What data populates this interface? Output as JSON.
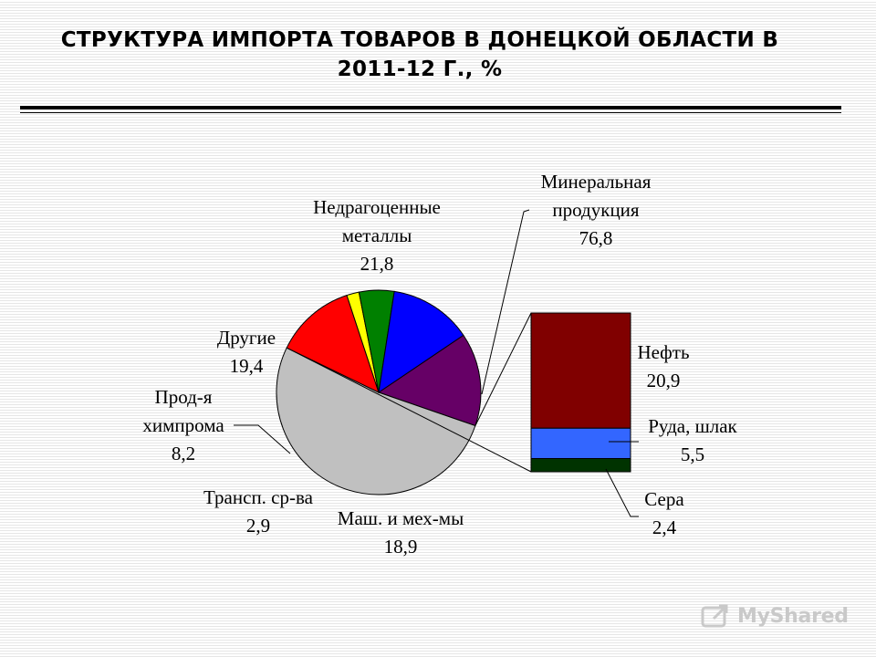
{
  "title": "СТРУКТУРА ИМПОРТА ТОВАРОВ В ДОНЕЦКОЙ ОБЛАСТИ В 2011-12 Г., %",
  "watermark": "MyShared",
  "chart_data": [
    {
      "type": "pie",
      "slices": [
        {
          "label_lines": [
            "Недрагоценные",
            "металлы"
          ],
          "value": 21.8,
          "value_text": "21,8",
          "color": "#660066"
        },
        {
          "label_lines": [
            "Минеральная",
            "продукция"
          ],
          "value": 76.8,
          "value_text": "76,8",
          "color": "#c0c0c0",
          "exploded_to_bar": true
        },
        {
          "label_lines": [
            "Маш. и мех-мы"
          ],
          "value": 18.9,
          "value_text": "18,9",
          "color": "#ff0000"
        },
        {
          "label_lines": [
            "Трансп. ср-ва"
          ],
          "value": 2.9,
          "value_text": "2,9",
          "color": "#ffff00"
        },
        {
          "label_lines": [
            "Прод-я",
            "химпрома"
          ],
          "value": 8.2,
          "value_text": "8,2",
          "color": "#008000"
        },
        {
          "label_lines": [
            "Другие"
          ],
          "value": 19.4,
          "value_text": "19,4",
          "color": "#0000ff"
        }
      ]
    },
    {
      "type": "bar",
      "stacked": true,
      "segments": [
        {
          "label_lines": [
            "Нефть"
          ],
          "value": 20.9,
          "value_text": "20,9",
          "color": "#800000"
        },
        {
          "label_lines": [
            "Руда, шлак"
          ],
          "value": 5.5,
          "value_text": "5,5",
          "color": "#3366ff"
        },
        {
          "label_lines": [
            "Сера"
          ],
          "value": 2.4,
          "value_text": "2,4",
          "color": "#003300"
        }
      ]
    }
  ]
}
